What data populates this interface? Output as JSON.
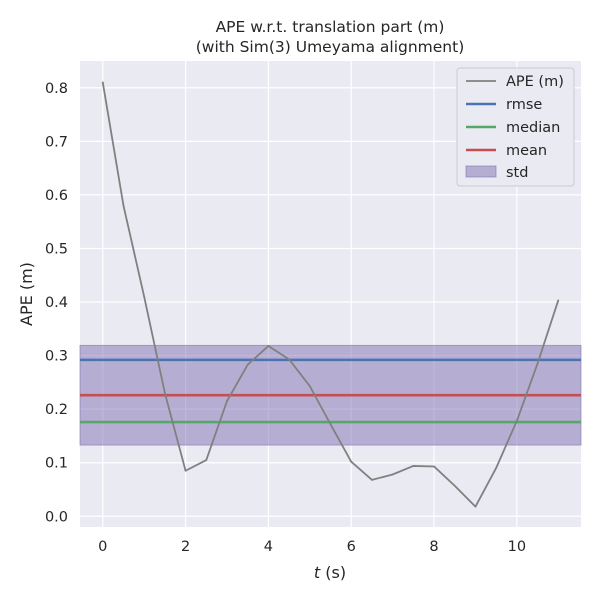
{
  "chart_data": {
    "type": "line",
    "title": "APE w.r.t. translation part (m)",
    "subtitle": "(with Sim(3) Umeyama alignment)",
    "xlabel_italic": "t",
    "xlabel_rest": " (s)",
    "ylabel": "APE (m)",
    "xlim": [
      -0.55,
      11.55
    ],
    "ylim": [
      -0.02,
      0.85
    ],
    "xticks": [
      0,
      2,
      4,
      6,
      8,
      10
    ],
    "xtick_labels": [
      "0",
      "2",
      "4",
      "6",
      "8",
      "10"
    ],
    "yticks": [
      0.0,
      0.1,
      0.2,
      0.3,
      0.4,
      0.5,
      0.6,
      0.7,
      0.8
    ],
    "ytick_labels": [
      "0.0",
      "0.1",
      "0.2",
      "0.3",
      "0.4",
      "0.5",
      "0.6",
      "0.7",
      "0.8"
    ],
    "grid": true,
    "legend_position": "top-right",
    "series": [
      {
        "name": "APE (m)",
        "color": "#808080",
        "x": [
          0,
          0.5,
          1,
          1.5,
          2,
          2.5,
          3,
          3.5,
          4,
          4.5,
          5,
          5.5,
          6,
          6.5,
          7,
          7.5,
          8,
          8.5,
          9,
          9.5,
          10,
          10.5,
          11
        ],
        "y": [
          0.81,
          0.58,
          0.41,
          0.23,
          0.085,
          0.105,
          0.215,
          0.283,
          0.318,
          0.293,
          0.243,
          0.172,
          0.102,
          0.068,
          0.078,
          0.094,
          0.093,
          0.057,
          0.018,
          0.09,
          0.178,
          0.285,
          0.403
        ]
      }
    ],
    "stats": {
      "rmse": {
        "name": "rmse",
        "value": 0.292,
        "color": "#4c72b0"
      },
      "median": {
        "name": "median",
        "value": 0.176,
        "color": "#55a868"
      },
      "mean": {
        "name": "mean",
        "value": 0.226,
        "color": "#c44e52"
      },
      "std": {
        "name": "std",
        "low": 0.133,
        "high": 0.319,
        "color": "#8172b2"
      }
    },
    "legend": [
      "APE (m)",
      "rmse",
      "median",
      "mean",
      "std"
    ]
  }
}
